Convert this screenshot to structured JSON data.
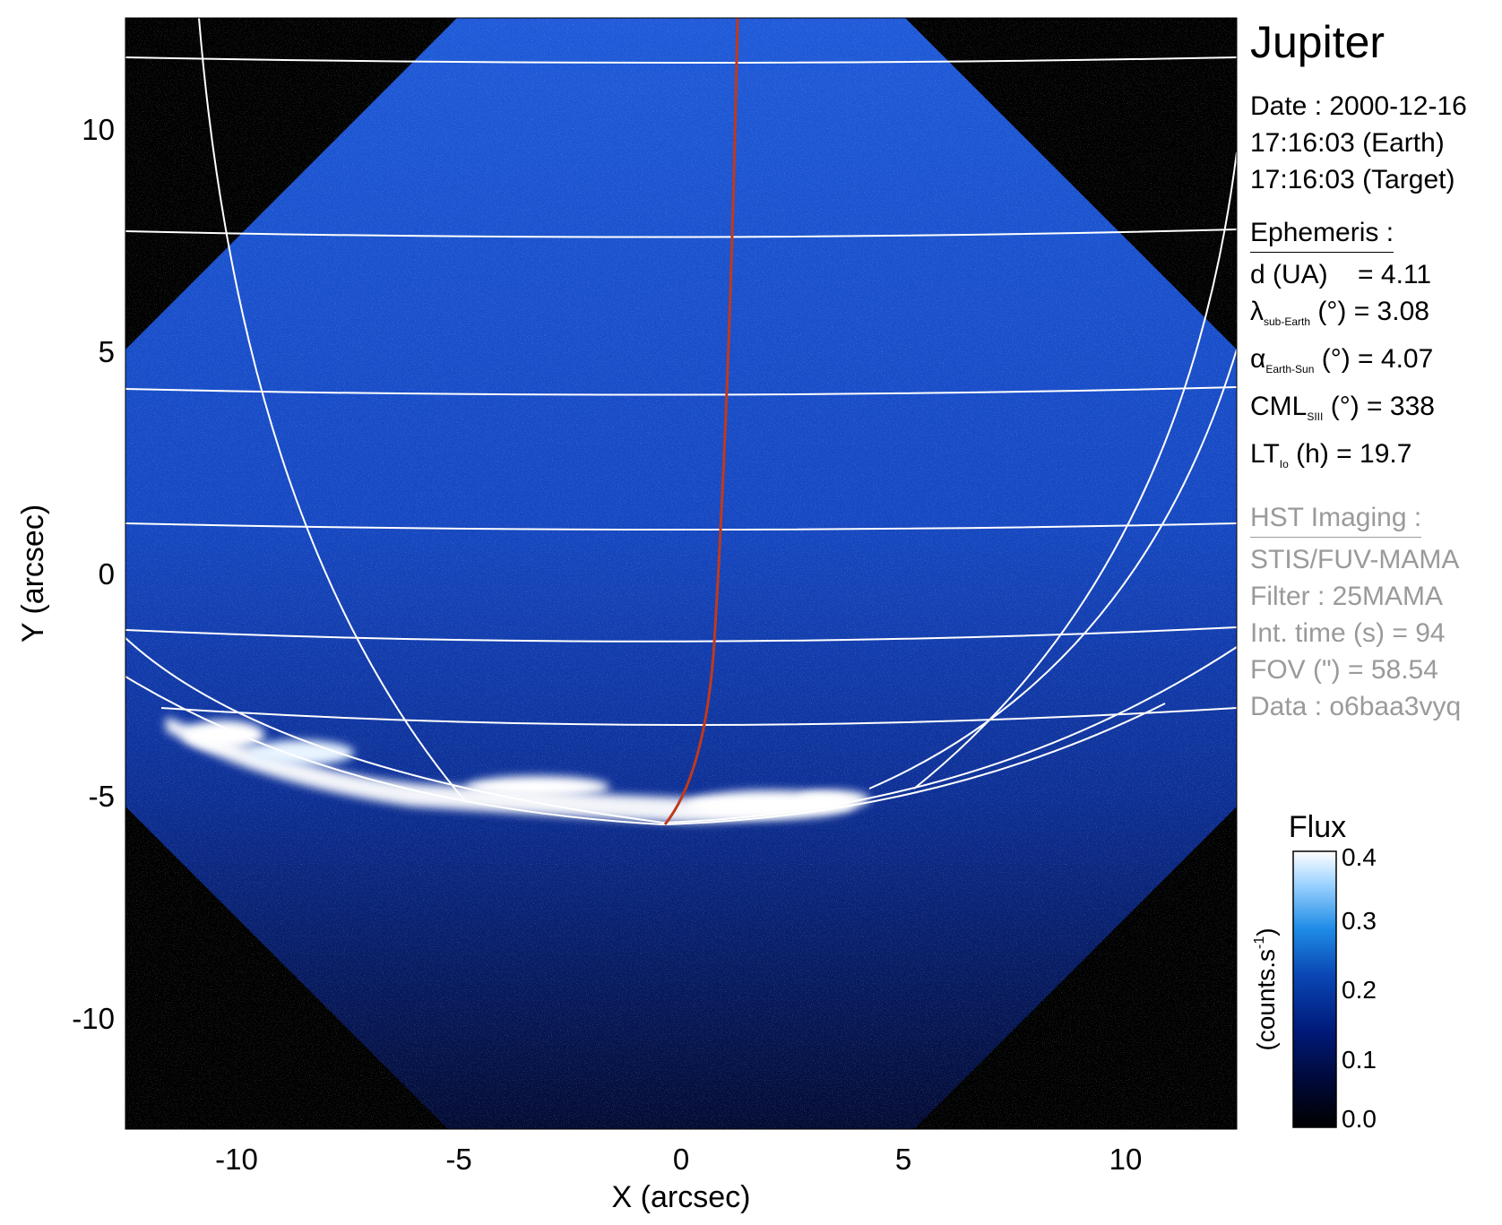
{
  "plot": {
    "x_axis_title": "X (arcsec)",
    "y_axis_title": "Y (arcsec)",
    "x_ticks": [
      "-10",
      "-5",
      "0",
      "5",
      "10"
    ],
    "y_ticks": [
      "10",
      "5",
      "0",
      "-5",
      "-10"
    ],
    "x_range": [
      -12.5,
      12.5
    ],
    "y_range": [
      -12.5,
      12.5
    ],
    "image_colormap": "blue",
    "grid_line_color": "#ffffff",
    "meridian_line_color": "#c0391b"
  },
  "info": {
    "planet": "Jupiter",
    "date_line": "Date : 2000-12-16",
    "earth_time_line": "17:16:03 (Earth)",
    "target_time_line": "17:16:03 (Target)",
    "ephemeris_heading": "Ephemeris :",
    "distance": {
      "label": "d (UA)",
      "value": "= 4.11"
    },
    "sub_earth_lat": {
      "symbol": "λ",
      "subscript": "sub-Earth",
      "unit": "(°)",
      "value": "= 3.08"
    },
    "phase_angle": {
      "symbol": "α",
      "subscript": "Earth-Sun",
      "unit": "(°)",
      "value": "= 4.07"
    },
    "cml": {
      "symbol": "CML",
      "subscript": "SIII",
      "unit": "(°)",
      "value": "= 338"
    },
    "io_local_time": {
      "symbol": "LT",
      "subscript": "Io",
      "unit": "(h)",
      "value": "= 19.7"
    },
    "hst_heading": "HST Imaging :",
    "instrument": "STIS/FUV-MAMA",
    "filter": "Filter : 25MAMA",
    "int_time": "Int. time (s) = 94",
    "fov": "FOV (\") = 58.54",
    "dataset": "Data : o6baa3vyq"
  },
  "colorbar": {
    "title": "Flux",
    "label_main": "(counts.s",
    "label_sup": "-1",
    "label_end": ")",
    "ticks": [
      "0.4",
      "0.3",
      "0.2",
      "0.1",
      "0.0"
    ],
    "colors": [
      "#000000",
      "#000a3c",
      "#001a7a",
      "#0a46b4",
      "#1e8ce6",
      "#9cd2ff",
      "#ffffff"
    ]
  }
}
